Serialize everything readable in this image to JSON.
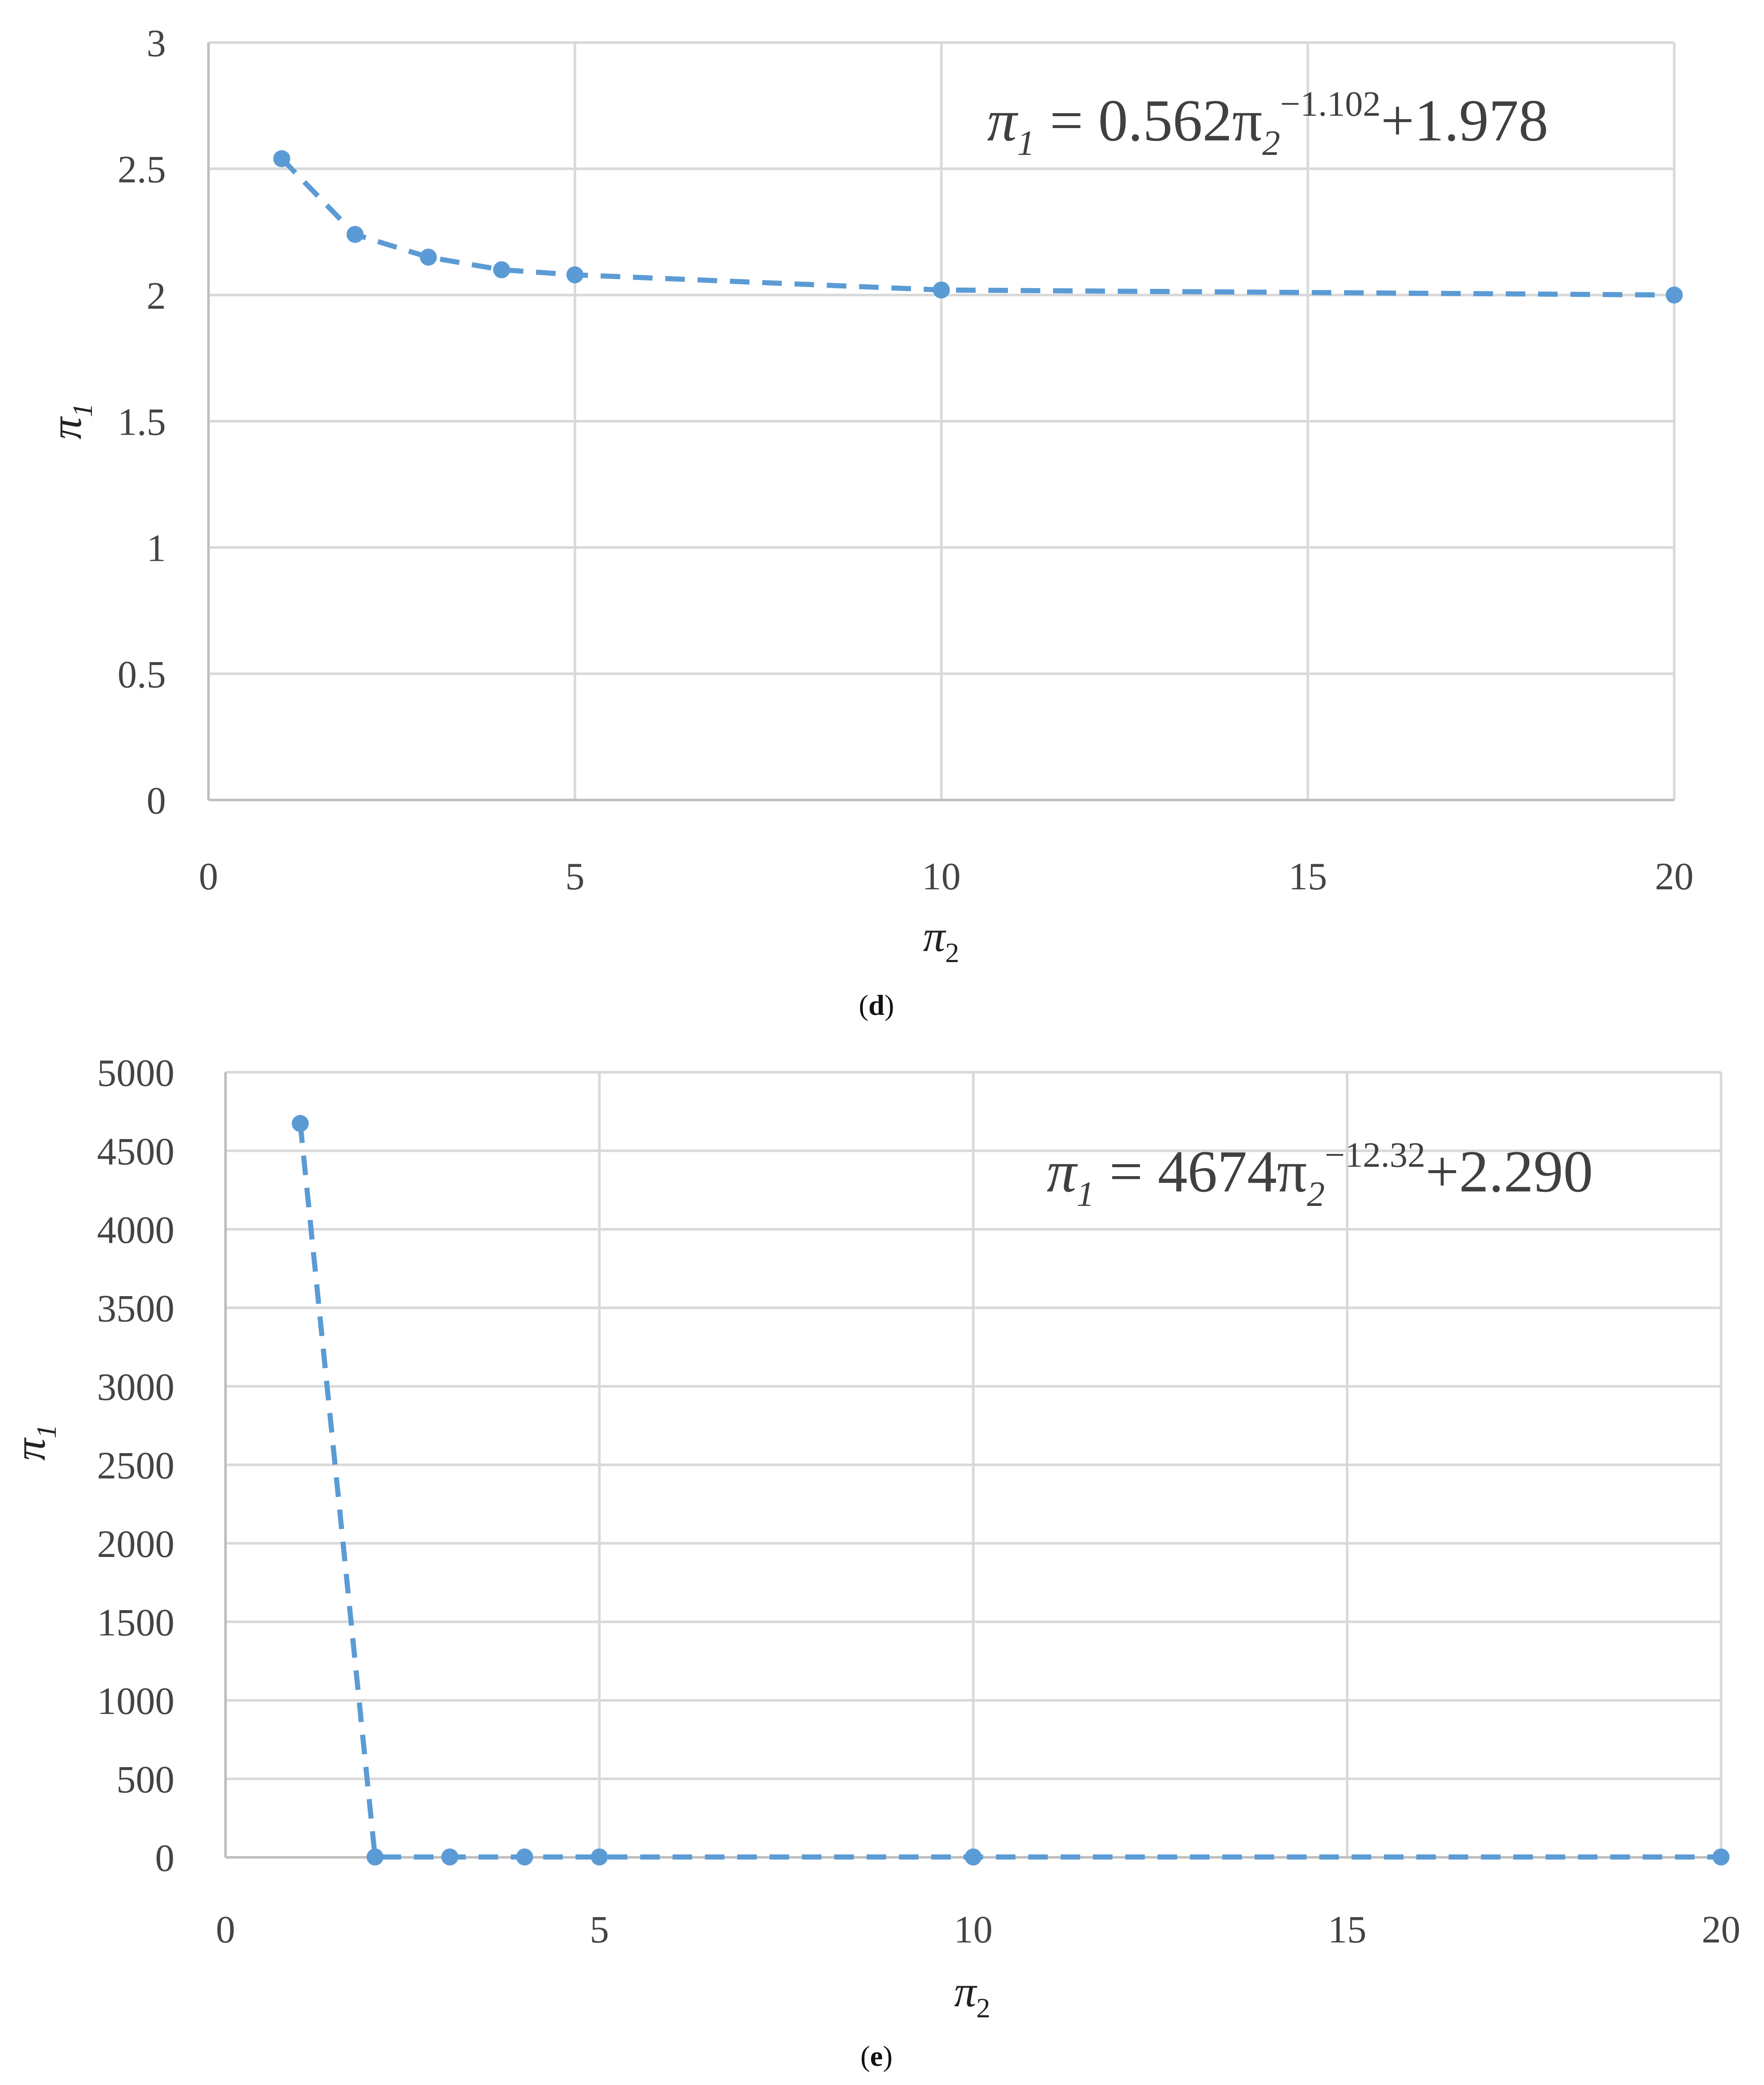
{
  "chart_data": [
    {
      "type": "scatter",
      "panel": "d",
      "caption_open": "(",
      "caption_letter": "d",
      "caption_close": ")",
      "xlabel": "π",
      "xlabel_sub": "2",
      "ylabel": "π",
      "ylabel_sub": "1",
      "xlim": [
        0,
        20
      ],
      "ylim": [
        0,
        3
      ],
      "xticks": [
        "0",
        "5",
        "10",
        "15",
        "20"
      ],
      "yticks": [
        "0",
        "0.5",
        "1",
        "1.5",
        "2",
        "2.5",
        "3"
      ],
      "grid": true,
      "marker_color": "#5b9bd5",
      "line_style": "dashed",
      "equation": {
        "lhs": "π",
        "lhs_sub": "1",
        "eq": " = ",
        "coef": "0.562π",
        "base_sub": "2",
        "exp": "−1.102",
        "tail": "+1.978"
      },
      "series": [
        {
          "x": [
            1,
            2,
            3,
            4,
            5,
            10,
            20
          ],
          "y": [
            2.54,
            2.24,
            2.15,
            2.1,
            2.08,
            2.02,
            2.0
          ]
        }
      ]
    },
    {
      "type": "scatter",
      "panel": "e",
      "caption_open": "(",
      "caption_letter": "e",
      "caption_close": ")",
      "xlabel": "π",
      "xlabel_sub": "2",
      "ylabel": "π",
      "ylabel_sub": "1",
      "xlim": [
        0,
        20
      ],
      "ylim": [
        0,
        5000
      ],
      "xticks": [
        "0",
        "5",
        "10",
        "15",
        "20"
      ],
      "yticks": [
        "0",
        "500",
        "1000",
        "1500",
        "2000",
        "2500",
        "3000",
        "3500",
        "4000",
        "4500",
        "5000"
      ],
      "grid": true,
      "marker_color": "#5b9bd5",
      "line_style": "dashed",
      "equation": {
        "lhs": "π",
        "lhs_sub": "1",
        "eq": " =  ",
        "coef": "4674π",
        "base_sub": "2",
        "exp": "−12.32",
        "tail": "+2.290"
      },
      "series": [
        {
          "x": [
            1,
            2,
            3,
            4,
            5,
            10,
            20
          ],
          "y": [
            4674,
            2.3,
            2.3,
            2.3,
            2.3,
            2.3,
            2.3
          ]
        }
      ]
    }
  ]
}
